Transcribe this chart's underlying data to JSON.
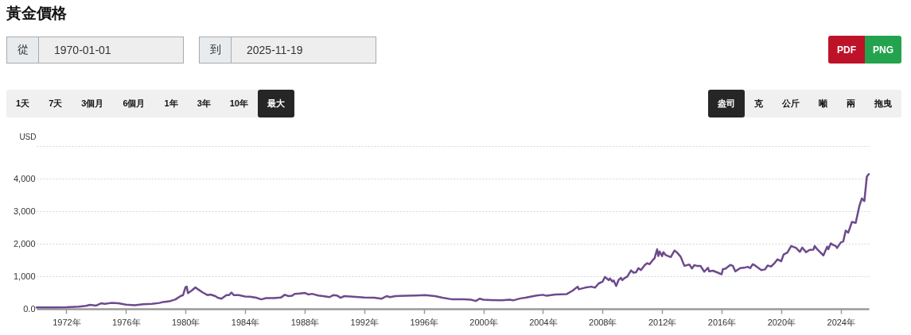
{
  "chart_data": {
    "type": "line",
    "title": "黃金價格",
    "ylabel": "USD",
    "annotations": [
      "從",
      "1970-01-01",
      "到",
      "2025-11-19",
      "PDF",
      "PNG",
      "1天",
      "7天",
      "3個月",
      "6個月",
      "1年",
      "3年",
      "10年",
      "最大",
      "盎司",
      "克",
      "公斤",
      "噸",
      "兩",
      "拖曳"
    ],
    "x": [
      "1970-01",
      "1971-01",
      "1972-01",
      "1972-11",
      "1973-05",
      "1973-08",
      "1974-01",
      "1974-05",
      "1974-08",
      "1975-01",
      "1975-07",
      "1976-01",
      "1976-08",
      "1977-03",
      "1977-10",
      "1978-04",
      "1978-07",
      "1978-12",
      "1979-05",
      "1979-09",
      "1979-11",
      "1980-01",
      "1980-02",
      "1980-03",
      "1980-06",
      "1980-09",
      "1980-11",
      "1981-03",
      "1981-07",
      "1981-09",
      "1982-01",
      "1982-03",
      "1982-06",
      "1982-10",
      "1982-12",
      "1983-02",
      "1983-04",
      "1983-08",
      "1984-01",
      "1984-05",
      "1984-10",
      "1985-02",
      "1985-06",
      "1985-12",
      "1986-06",
      "1986-09",
      "1986-12",
      "1987-03",
      "1987-05",
      "1987-09",
      "1988-01",
      "1988-04",
      "1988-07",
      "1988-12",
      "1989-04",
      "1989-09",
      "1989-12",
      "1990-03",
      "1990-06",
      "1990-09",
      "1991-04",
      "1992-01",
      "1992-09",
      "1993-03",
      "1993-07",
      "1993-10",
      "1994-02",
      "1994-11",
      "1995-07",
      "1996-02",
      "1996-10",
      "1997-04",
      "1997-12",
      "1998-09",
      "1999-03",
      "1999-07",
      "1999-10",
      "2000-01",
      "2000-07",
      "2001-04",
      "2001-10",
      "2002-01",
      "2002-07",
      "2002-11",
      "2003-03",
      "2003-08",
      "2004-01",
      "2004-04",
      "2004-11",
      "2005-08",
      "2006-01",
      "2006-05",
      "2006-06",
      "2006-11",
      "2007-04",
      "2007-07",
      "2007-10",
      "2008-01",
      "2008-03",
      "2008-06",
      "2008-07",
      "2008-09",
      "2008-10",
      "2008-12",
      "2009-02",
      "2009-04",
      "2009-05",
      "2009-07",
      "2009-09",
      "2009-12",
      "2010-02",
      "2010-04",
      "2010-06",
      "2010-08",
      "2010-11",
      "2011-01",
      "2011-03",
      "2011-06",
      "2011-07",
      "2011-09",
      "2011-10",
      "2011-11",
      "2012-01",
      "2012-02",
      "2012-04",
      "2012-08",
      "2012-11",
      "2013-01",
      "2013-04",
      "2013-07",
      "2013-11",
      "2014-01",
      "2014-03",
      "2014-05",
      "2014-08",
      "2014-11",
      "2015-02",
      "2015-03",
      "2015-06",
      "2015-10",
      "2016-01",
      "2016-02",
      "2016-04",
      "2016-08",
      "2016-10",
      "2016-12",
      "2017-04",
      "2017-07",
      "2017-10",
      "2017-12",
      "2018-02",
      "2018-04",
      "2018-09",
      "2018-12",
      "2019-02",
      "2019-05",
      "2019-08",
      "2019-10",
      "2020-01",
      "2020-03",
      "2020-06",
      "2020-09",
      "2021-01",
      "2021-04",
      "2021-06",
      "2021-09",
      "2021-12",
      "2022-03",
      "2022-04",
      "2022-06",
      "2022-11",
      "2023-02",
      "2023-03",
      "2023-05",
      "2023-07",
      "2023-09",
      "2023-10",
      "2024-01",
      "2024-03",
      "2024-05",
      "2024-07",
      "2024-10",
      "2025-01",
      "2025-04",
      "2025-06",
      "2025-08",
      "2025-10",
      "2025-11-19"
    ],
    "series": [
      {
        "color": "#6d4a8d",
        "values": [
          40,
          40,
          50,
          70,
          90,
          120,
          100,
          170,
          150,
          180,
          170,
          130,
          110,
          140,
          150,
          180,
          210,
          230,
          290,
          390,
          420,
          660,
          680,
          480,
          560,
          660,
          600,
          500,
          420,
          440,
          390,
          340,
          310,
          420,
          420,
          500,
          420,
          420,
          380,
          370,
          340,
          290,
          330,
          330,
          350,
          430,
          390,
          400,
          460,
          470,
          490,
          440,
          460,
          410,
          390,
          360,
          420,
          410,
          340,
          390,
          370,
          350,
          340,
          310,
          390,
          360,
          390,
          400,
          410,
          420,
          390,
          340,
          290,
          290,
          280,
          240,
          310,
          280,
          270,
          260,
          280,
          260,
          320,
          340,
          370,
          410,
          430,
          400,
          440,
          450,
          560,
          680,
          600,
          650,
          680,
          650,
          780,
          830,
          980,
          880,
          930,
          840,
          870,
          700,
          890,
          950,
          880,
          950,
          990,
          1180,
          1110,
          1120,
          1250,
          1190,
          1340,
          1400,
          1370,
          1520,
          1550,
          1830,
          1620,
          1760,
          1620,
          1740,
          1650,
          1590,
          1790,
          1730,
          1600,
          1320,
          1360,
          1240,
          1340,
          1320,
          1320,
          1140,
          1260,
          1150,
          1170,
          1110,
          1060,
          1220,
          1230,
          1350,
          1320,
          1150,
          1250,
          1260,
          1290,
          1250,
          1370,
          1330,
          1190,
          1210,
          1330,
          1300,
          1420,
          1520,
          1460,
          1670,
          1730,
          1930,
          1870,
          1750,
          1880,
          1740,
          1810,
          1820,
          1930,
          1830,
          1640,
          1910,
          1830,
          2010,
          1960,
          1930,
          1870,
          2040,
          2070,
          2400,
          2340,
          2670,
          2640,
          3160,
          3390,
          3310,
          4060,
          4140
        ]
      }
    ],
    "xlim": [
      "1970-01-01",
      "2025-11-19"
    ],
    "xticks": [
      {
        "value": "1972",
        "label": "1972年"
      },
      {
        "value": "1976",
        "label": "1976年"
      },
      {
        "value": "1980",
        "label": "1980年"
      },
      {
        "value": "1984",
        "label": "1984年"
      },
      {
        "value": "1988",
        "label": "1988年"
      },
      {
        "value": "1992",
        "label": "1992年"
      },
      {
        "value": "1996",
        "label": "1996年"
      },
      {
        "value": "2000",
        "label": "2000年"
      },
      {
        "value": "2004",
        "label": "2004年"
      },
      {
        "value": "2008",
        "label": "2008年"
      },
      {
        "value": "2012",
        "label": "2012年"
      },
      {
        "value": "2016",
        "label": "2016年"
      },
      {
        "value": "2020",
        "label": "2020年"
      },
      {
        "value": "2024",
        "label": "2024年"
      }
    ],
    "ylim": [
      0,
      5000
    ],
    "yticks": [
      {
        "value": 0,
        "label": "0.0"
      },
      {
        "value": 1000,
        "label": "1,000"
      },
      {
        "value": 2000,
        "label": "2,000"
      },
      {
        "value": 3000,
        "label": "3,000"
      },
      {
        "value": 4000,
        "label": "4,000"
      },
      {
        "value": 5000,
        "label": null
      }
    ],
    "grid": "y"
  }
}
